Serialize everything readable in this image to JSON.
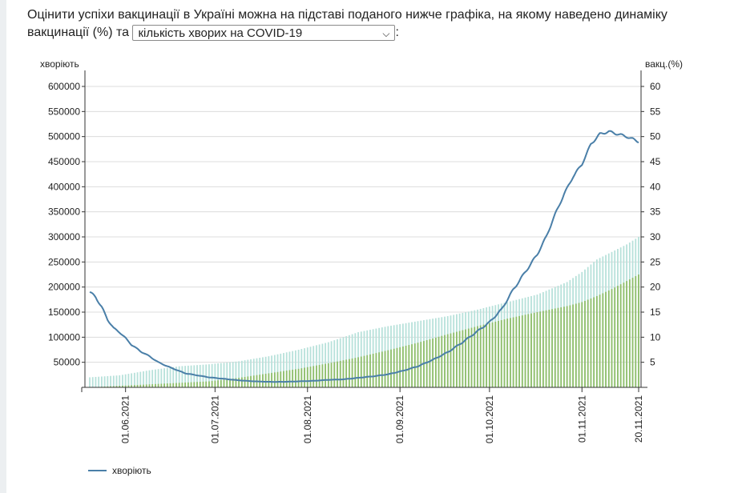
{
  "question": {
    "text_before": "Оцінити успіхи вакцинації в Україні можна на підставі поданого нижче графіка, на якому наведено динаміку вакцинації (%) та ",
    "text_after": ":",
    "select_value": "кількість хворих на COVID-19",
    "select_icon": "chevron-down-icon"
  },
  "chart_data": {
    "type": "bar+line",
    "y_left_label": "хворіють",
    "y_right_label": "вакц.(%)",
    "y_left_ticks": [
      "600000",
      "550000",
      "500000",
      "450000",
      "400000",
      "350000",
      "300000",
      "250000",
      "200000",
      "150000",
      "100000",
      "50000"
    ],
    "y_right_ticks": [
      "60",
      "55",
      "50",
      "45",
      "40",
      "35",
      "30",
      "25",
      "20",
      "15",
      "10",
      "5"
    ],
    "y_left_range": [
      0,
      600000
    ],
    "y_right_range": [
      0,
      60
    ],
    "x_tick_labels": [
      "01.06.2021",
      "01.07.2021",
      "01.08.2021",
      "01.09.2021",
      "01.10.2021",
      "01.11.2021",
      "20.11.2021"
    ],
    "x_tick_days": [
      12,
      42,
      73,
      104,
      134,
      165,
      184
    ],
    "x_range_days": [
      0,
      184
    ],
    "date_start": "20.05.2021",
    "grid": true,
    "legend_position": "bottom-left",
    "colors": {
      "line": "#4a7fa8",
      "bars_one_dose": "#b7e1da",
      "bars_full": "#8fbe6a",
      "grid": "#dcdcdc",
      "axis": "#333333"
    },
    "series": [
      {
        "name": "хворіють",
        "kind": "line",
        "axis": "left",
        "points": [
          [
            0,
            190000
          ],
          [
            2,
            180000
          ],
          [
            4,
            160000
          ],
          [
            6,
            135000
          ],
          [
            8,
            118000
          ],
          [
            10,
            110000
          ],
          [
            12,
            98000
          ],
          [
            14,
            85000
          ],
          [
            17,
            72000
          ],
          [
            20,
            62000
          ],
          [
            23,
            50000
          ],
          [
            26,
            42000
          ],
          [
            29,
            35000
          ],
          [
            32,
            28000
          ],
          [
            36,
            24000
          ],
          [
            40,
            20000
          ],
          [
            45,
            17000
          ],
          [
            50,
            14000
          ],
          [
            55,
            12000
          ],
          [
            60,
            11000
          ],
          [
            65,
            11000
          ],
          [
            70,
            12000
          ],
          [
            75,
            13000
          ],
          [
            80,
            15000
          ],
          [
            85,
            16000
          ],
          [
            90,
            19000
          ],
          [
            95,
            22000
          ],
          [
            100,
            26000
          ],
          [
            105,
            33000
          ],
          [
            110,
            42000
          ],
          [
            115,
            55000
          ],
          [
            120,
            70000
          ],
          [
            125,
            90000
          ],
          [
            130,
            112000
          ],
          [
            134,
            130000
          ],
          [
            138,
            155000
          ],
          [
            142,
            195000
          ],
          [
            146,
            230000
          ],
          [
            150,
            265000
          ],
          [
            153,
            300000
          ],
          [
            156,
            345000
          ],
          [
            159,
            385000
          ],
          [
            162,
            420000
          ],
          [
            165,
            445000
          ],
          [
            168,
            485000
          ],
          [
            171,
            505000
          ],
          [
            174,
            510000
          ],
          [
            177,
            505000
          ],
          [
            180,
            500000
          ],
          [
            184,
            490000
          ]
        ]
      },
      {
        "name": "",
        "kind": "bar",
        "axis": "right",
        "points": [
          [
            0,
            2
          ],
          [
            10,
            2.4
          ],
          [
            20,
            3.4
          ],
          [
            30,
            4.2
          ],
          [
            40,
            4.6
          ],
          [
            50,
            5.2
          ],
          [
            60,
            6.2
          ],
          [
            70,
            7.5
          ],
          [
            80,
            9.0
          ],
          [
            90,
            11.0
          ],
          [
            100,
            12.2
          ],
          [
            110,
            13.2
          ],
          [
            120,
            14.2
          ],
          [
            130,
            15.5
          ],
          [
            140,
            17.0
          ],
          [
            150,
            18.5
          ],
          [
            160,
            21.0
          ],
          [
            165,
            23.0
          ],
          [
            170,
            25.5
          ],
          [
            175,
            27.0
          ],
          [
            180,
            28.5
          ],
          [
            184,
            30.0
          ]
        ]
      },
      {
        "name": "",
        "kind": "bar",
        "axis": "right",
        "points": [
          [
            0,
            0
          ],
          [
            10,
            0.3
          ],
          [
            20,
            0.6
          ],
          [
            30,
            0.9
          ],
          [
            40,
            1.2
          ],
          [
            50,
            1.9
          ],
          [
            60,
            2.8
          ],
          [
            70,
            3.7
          ],
          [
            80,
            4.8
          ],
          [
            90,
            6.0
          ],
          [
            100,
            7.4
          ],
          [
            110,
            8.9
          ],
          [
            120,
            10.6
          ],
          [
            130,
            12.2
          ],
          [
            140,
            13.7
          ],
          [
            150,
            15.0
          ],
          [
            160,
            16.2
          ],
          [
            165,
            17.0
          ],
          [
            170,
            18.2
          ],
          [
            175,
            19.6
          ],
          [
            180,
            21.2
          ],
          [
            184,
            22.5
          ]
        ]
      }
    ],
    "legend": [
      "хворіють"
    ]
  }
}
